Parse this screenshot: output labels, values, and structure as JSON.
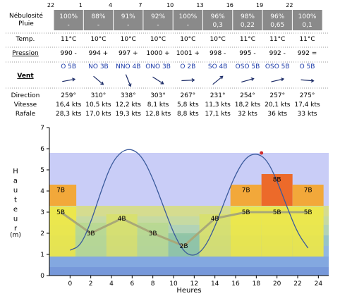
{
  "header_hours": [
    "22",
    "1",
    "4",
    "7",
    "10",
    "13",
    "16",
    "19",
    "22"
  ],
  "row_labels": {
    "nebulosite": "Nébulosité",
    "pluie": "Pluie",
    "temp": "Temp.",
    "pression": "Pression",
    "vent": "Vent",
    "direction": "Direction",
    "vitesse": "Vitesse",
    "rafale": "Rafale"
  },
  "columns": [
    {
      "nebulosite": "100%",
      "pluie": "-",
      "temp": "11°C",
      "pression": "990 -",
      "vent": "O 5B",
      "direction": "259°",
      "vitesse": "16,4 kts",
      "rafale": "28,3 kts",
      "dir_deg": 259
    },
    {
      "nebulosite": "88%",
      "pluie": "-",
      "temp": "10°C",
      "pression": "994 +",
      "vent": "NO 3B",
      "direction": "310°",
      "vitesse": "10,5 kts",
      "rafale": "17,0 kts",
      "dir_deg": 310
    },
    {
      "nebulosite": "91%",
      "pluie": "-",
      "temp": "10°C",
      "pression": "997 +",
      "vent": "NNO 4B",
      "direction": "338°",
      "vitesse": "12,2 kts",
      "rafale": "19,3 kts",
      "dir_deg": 338
    },
    {
      "nebulosite": "92%",
      "pluie": "-",
      "temp": "10°C",
      "pression": "1000 +",
      "vent": "ONO 3B",
      "direction": "303°",
      "vitesse": "8,1 kts",
      "rafale": "12,8 kts",
      "dir_deg": 303
    },
    {
      "nebulosite": "100%",
      "pluie": "-",
      "temp": "10°C",
      "pression": "1001 +",
      "vent": "O 2B",
      "direction": "267°",
      "vitesse": "5,8 kts",
      "rafale": "8,8 kts",
      "dir_deg": 267
    },
    {
      "nebulosite": "96%",
      "pluie": "0,3",
      "temp": "10°C",
      "pression": "998 -",
      "vent": "SO 4B",
      "direction": "231°",
      "vitesse": "11,3 kts",
      "rafale": "17,1 kts",
      "dir_deg": 231
    },
    {
      "nebulosite": "98%",
      "pluie": "0,22",
      "temp": "11°C",
      "pression": "995 -",
      "vent": "OSO 5B",
      "direction": "254°",
      "vitesse": "18,2 kts",
      "rafale": "32 kts",
      "dir_deg": 254
    },
    {
      "nebulosite": "96%",
      "pluie": "0,65",
      "temp": "11°C",
      "pression": "992 -",
      "vent": "OSO 5B",
      "direction": "257°",
      "vitesse": "20,1 kts",
      "rafale": "36 kts",
      "dir_deg": 257
    },
    {
      "nebulosite": "100%",
      "pluie": "0,1",
      "temp": "11°C",
      "pression": "992 =",
      "vent": "O 5B",
      "direction": "275°",
      "vitesse": "17,4 kts",
      "rafale": "33 kts",
      "dir_deg": 275
    }
  ],
  "colors": {
    "header_bg": "#8a8a8a",
    "plot_bg": "#c9cdf7",
    "tide_line": "#3a5a9c",
    "wind_line": "#a8a878",
    "high_tide_marker": "#d03030"
  },
  "chart_data": {
    "type": "line",
    "xlabel": "Heures",
    "ylabel": "Hauteur (m)",
    "ylim": [
      0,
      7
    ],
    "xlim": [
      -2,
      25
    ],
    "x_ticks": [
      0,
      2,
      4,
      6,
      8,
      10,
      12,
      14,
      16,
      18,
      20,
      22,
      24
    ],
    "y_ticks": [
      0,
      1,
      2,
      3,
      4,
      5,
      6,
      7
    ],
    "grid": false,
    "tide": {
      "x": [
        0,
        1,
        2,
        3,
        4,
        5,
        6,
        7,
        8,
        9,
        10,
        11,
        12,
        13,
        14,
        15,
        16,
        17,
        18,
        19,
        20,
        21,
        22,
        23
      ],
      "y": [
        1.2,
        1.4,
        2.5,
        4.0,
        5.3,
        5.9,
        6.0,
        5.6,
        4.6,
        3.3,
        2.0,
        1.1,
        0.9,
        1.3,
        2.3,
        3.6,
        4.8,
        5.6,
        5.8,
        5.5,
        4.5,
        3.2,
        2.0,
        1.3
      ],
      "high_tide": {
        "x": 18.5,
        "y": 5.8
      }
    },
    "wind_beaufort": {
      "x": [
        -0.9,
        2,
        5,
        8,
        11,
        14,
        17,
        20,
        23
      ],
      "values": [
        5,
        3,
        4,
        3,
        2,
        4,
        5,
        5,
        5
      ],
      "labels": [
        "5B",
        "3B",
        "4B",
        "3B",
        "2B",
        "4B",
        "5B",
        "5B",
        "5B"
      ],
      "line_y": [
        3.0,
        2.0,
        2.7,
        2.0,
        1.4,
        2.7,
        3.0,
        3.0,
        3.0
      ]
    },
    "gust_beaufort": {
      "x": [
        -0.9,
        17,
        20,
        23
      ],
      "values": [
        7,
        7,
        8,
        7
      ],
      "labels": [
        "7B",
        "7B",
        "8B",
        "7B"
      ]
    }
  }
}
